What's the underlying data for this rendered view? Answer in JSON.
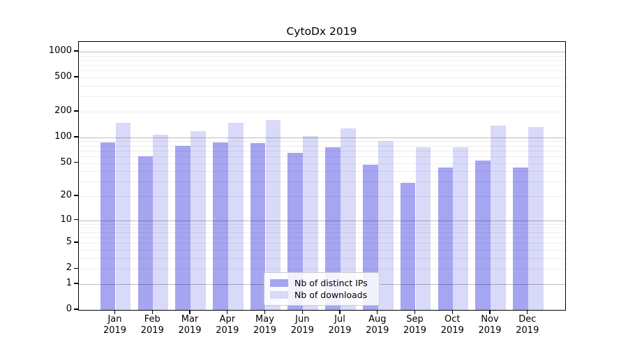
{
  "chart_data": {
    "type": "bar",
    "title": "CytoDx 2019",
    "xlabel": "",
    "ylabel": "",
    "yscale": "symlog",
    "ylim": [
      0,
      1300
    ],
    "yticks": [
      0,
      1,
      2,
      5,
      10,
      20,
      50,
      100,
      200,
      500,
      1000
    ],
    "grid": "on",
    "grid_major_at": [
      1,
      10,
      100,
      1000
    ],
    "categories": [
      "Jan",
      "Feb",
      "Mar",
      "Apr",
      "May",
      "Jun",
      "Jul",
      "Aug",
      "Sep",
      "Oct",
      "Nov",
      "Dec"
    ],
    "year": "2019",
    "series": [
      {
        "name": "Nb of distinct IPs",
        "color": "#a5a5f2",
        "values": [
          88,
          60,
          79,
          87,
          86,
          66,
          76,
          48,
          29,
          44,
          53,
          44
        ]
      },
      {
        "name": "Nb of downloads",
        "color": "#d9d9f9",
        "values": [
          147,
          108,
          119,
          147,
          160,
          104,
          127,
          90,
          77,
          76,
          138,
          133
        ]
      }
    ],
    "legend": {
      "position": "lower center",
      "entries": [
        "Nb of distinct IPs",
        "Nb of downloads"
      ]
    }
  }
}
